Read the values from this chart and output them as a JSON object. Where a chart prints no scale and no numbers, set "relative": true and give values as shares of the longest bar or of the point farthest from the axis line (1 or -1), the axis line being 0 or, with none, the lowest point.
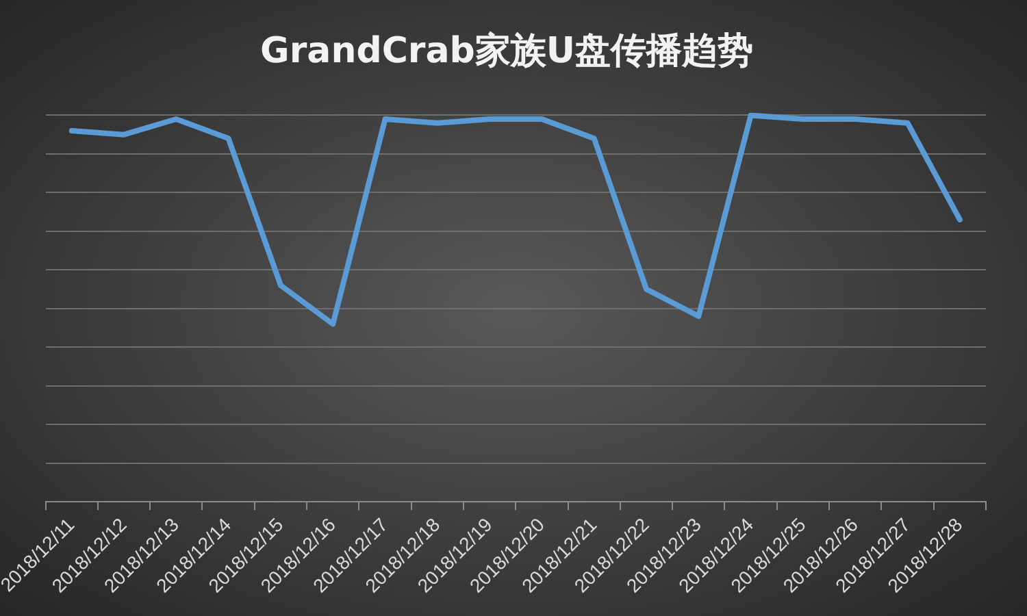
{
  "chart_data": {
    "type": "line",
    "title": "GrandCrab家族U盘传播趋势",
    "categories": [
      "2018/12/11",
      "2018/12/12",
      "2018/12/13",
      "2018/12/14",
      "2018/12/15",
      "2018/12/16",
      "2018/12/17",
      "2018/12/18",
      "2018/12/19",
      "2018/12/20",
      "2018/12/21",
      "2018/12/22",
      "2018/12/23",
      "2018/12/24",
      "2018/12/25",
      "2018/12/26",
      "2018/12/27",
      "2018/12/28"
    ],
    "series": [
      {
        "color": "#5b9bd5",
        "values": [
          0.96,
          0.95,
          0.99,
          0.94,
          0.56,
          0.46,
          0.99,
          0.98,
          0.99,
          0.99,
          0.94,
          0.55,
          0.48,
          1,
          0.99,
          0.99,
          0.98,
          0.73
        ]
      }
    ],
    "relative": true,
    "grid": "y",
    "legend": false,
    "marker": "none",
    "line_style": "solid",
    "tick_labels": "x"
  }
}
